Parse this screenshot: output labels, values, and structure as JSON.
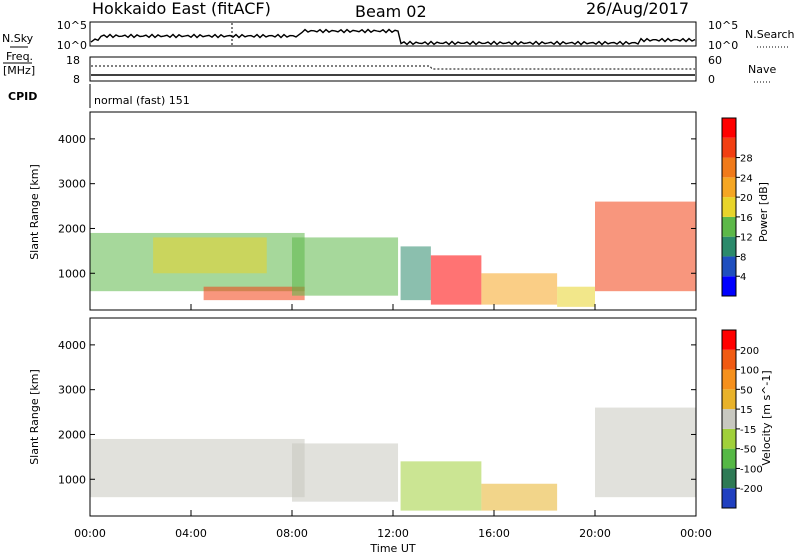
{
  "header": {
    "title": "Hokkaido East (fitACF)",
    "beam": "Beam 02",
    "date": "26/Aug/2017"
  },
  "aux_panels": {
    "nsky_label": "N.Sky",
    "nsky_ticks": [
      "10^5",
      "10^0"
    ],
    "nsearch_label": "N.Search",
    "nsearch_ticks": [
      "10^5",
      "10^0"
    ],
    "freq_label_1": "Freq.",
    "freq_label_2": "[MHz]",
    "freq_ticks": [
      "18",
      "8"
    ],
    "nave_label": "Nave",
    "nave_ticks": [
      "60",
      "0"
    ],
    "cpid_label": "CPID",
    "cpid_text": "normal (fast) 151"
  },
  "chart_data": [
    {
      "type": "heatmap",
      "name": "power",
      "ylabel": "Slant Range [km]",
      "xlabel": "Time UT",
      "x_ticks": [
        "00:00",
        "04:00",
        "08:00",
        "12:00",
        "16:00",
        "20:00",
        "00:00"
      ],
      "y_ticks": [
        1000,
        2000,
        3000,
        4000
      ],
      "xlim_hours": [
        0,
        24
      ],
      "ylim_km": [
        180,
        4600
      ],
      "colorbar": {
        "label": "Power [dB]",
        "ticks": [
          "4",
          "8",
          "12",
          "16",
          "20",
          "24",
          "28"
        ],
        "colors": [
          "#0000ff",
          "#1f4fbf",
          "#2b8a6b",
          "#5cb848",
          "#e8d42a",
          "#f5a623",
          "#f07a1a",
          "#f23f12",
          "#ff0000"
        ]
      },
      "regions": [
        {
          "t0": 0.0,
          "t1": 8.5,
          "r0": 600,
          "r1": 1900,
          "level": 3
        },
        {
          "t0": 2.5,
          "t1": 7.0,
          "r0": 1000,
          "r1": 1800,
          "level": 4
        },
        {
          "t0": 4.5,
          "t1": 8.5,
          "r0": 400,
          "r1": 700,
          "level": 7
        },
        {
          "t0": 8.0,
          "t1": 12.2,
          "r0": 500,
          "r1": 1800,
          "level": 3
        },
        {
          "t0": 12.3,
          "t1": 13.5,
          "r0": 400,
          "r1": 1600,
          "level": 2
        },
        {
          "t0": 13.5,
          "t1": 15.5,
          "r0": 300,
          "r1": 1400,
          "level": 8
        },
        {
          "t0": 15.5,
          "t1": 18.5,
          "r0": 300,
          "r1": 1000,
          "level": 5
        },
        {
          "t0": 18.5,
          "t1": 20.0,
          "r0": 250,
          "r1": 700,
          "level": 4
        },
        {
          "t0": 20.0,
          "t1": 24.0,
          "r0": 600,
          "r1": 2600,
          "level": 7
        }
      ]
    },
    {
      "type": "heatmap",
      "name": "velocity",
      "ylabel": "Slant Range [km]",
      "xlabel": "Time UT",
      "x_ticks": [
        "00:00",
        "04:00",
        "08:00",
        "12:00",
        "16:00",
        "20:00",
        "00:00"
      ],
      "y_ticks": [
        1000,
        2000,
        3000,
        4000
      ],
      "xlim_hours": [
        0,
        24
      ],
      "ylim_km": [
        180,
        4600
      ],
      "colorbar": {
        "label": "Velocity [m s^-1]",
        "ticks": [
          "200",
          "100",
          "50",
          "15",
          "-15",
          "-50",
          "-100",
          "-200"
        ],
        "colors": [
          "#2040c0",
          "#2e7a55",
          "#55b845",
          "#a0d03a",
          "#c8c8c0",
          "#e8b22a",
          "#f5901c",
          "#f05a12",
          "#ff0000"
        ]
      },
      "regions": [
        {
          "t0": 0.0,
          "t1": 8.5,
          "r0": 600,
          "r1": 1900,
          "level": 4
        },
        {
          "t0": 8.0,
          "t1": 12.2,
          "r0": 500,
          "r1": 1800,
          "level": 4
        },
        {
          "t0": 12.3,
          "t1": 15.5,
          "r0": 300,
          "r1": 1400,
          "level": 3
        },
        {
          "t0": 15.5,
          "t1": 18.5,
          "r0": 300,
          "r1": 900,
          "level": 5
        },
        {
          "t0": 20.0,
          "t1": 24.0,
          "r0": 600,
          "r1": 2600,
          "level": 4
        }
      ]
    }
  ]
}
